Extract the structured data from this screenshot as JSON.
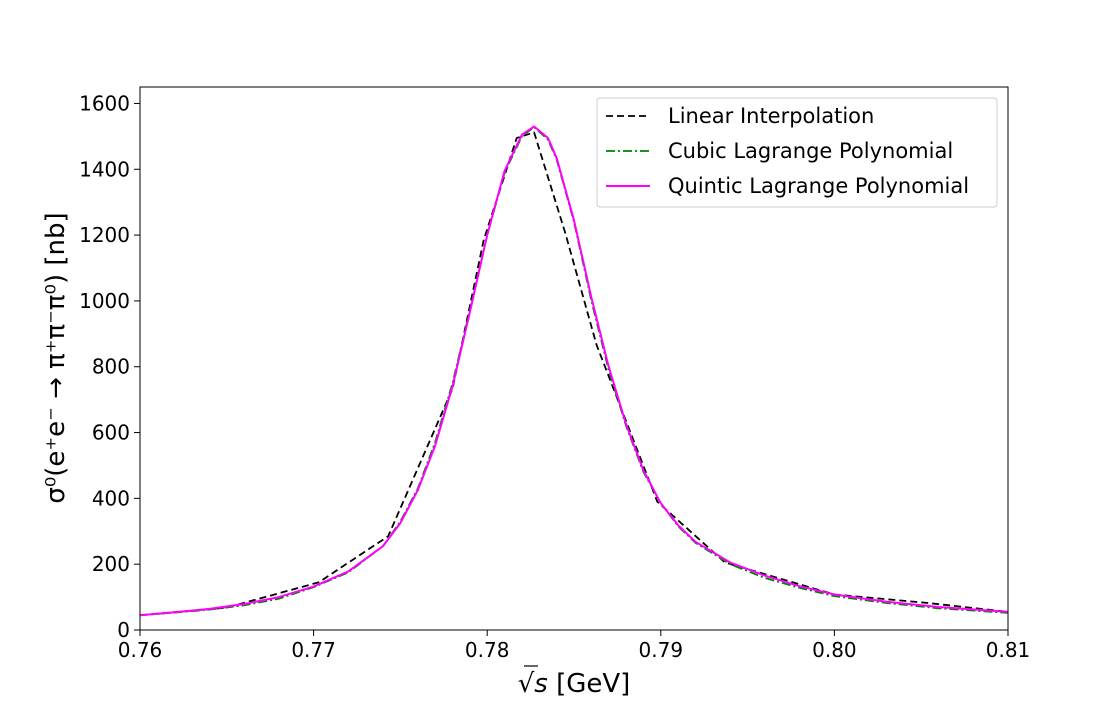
{
  "chart_data": {
    "type": "line",
    "title": "",
    "xlabel_radical": "√",
    "xlabel_var": "s",
    "xlabel_unit": " [GeV]",
    "ylabel": "σ⁰(e⁺e⁻ → π⁺π⁻π⁰) [nb]",
    "xlim": [
      0.76,
      0.81
    ],
    "ylim": [
      0,
      1650
    ],
    "x_ticks": [
      0.76,
      0.77,
      0.78,
      0.79,
      0.8,
      0.81
    ],
    "x_tick_labels": [
      "0.76",
      "0.77",
      "0.78",
      "0.79",
      "0.80",
      "0.81"
    ],
    "y_ticks": [
      0,
      200,
      400,
      600,
      800,
      1000,
      1200,
      1400,
      1600
    ],
    "y_tick_labels": [
      "0",
      "200",
      "400",
      "600",
      "800",
      "1000",
      "1200",
      "1400",
      "1600"
    ],
    "grid": false,
    "legend_position": "top-right",
    "series": [
      {
        "name": "Linear Interpolation",
        "color": "#000000",
        "style": "dashed",
        "x": [
          0.76,
          0.765,
          0.7703,
          0.7743,
          0.778,
          0.7798,
          0.7817,
          0.7827,
          0.7845,
          0.7863,
          0.7898,
          0.7937,
          0.8,
          0.8054,
          0.81
        ],
        "y": [
          45,
          68,
          145,
          285,
          733,
          1185,
          1495,
          1512,
          1206,
          866,
          390,
          205,
          108,
          82,
          55
        ]
      },
      {
        "name": "Cubic Lagrange Polynomial",
        "color": "#008000",
        "style": "dashdot",
        "x": [
          0.76,
          0.762,
          0.764,
          0.766,
          0.768,
          0.77,
          0.772,
          0.774,
          0.775,
          0.776,
          0.777,
          0.778,
          0.779,
          0.78,
          0.781,
          0.782,
          0.7827,
          0.7835,
          0.784,
          0.785,
          0.786,
          0.787,
          0.788,
          0.789,
          0.79,
          0.791,
          0.792,
          0.794,
          0.796,
          0.798,
          0.8,
          0.803,
          0.806,
          0.81
        ],
        "y": [
          45,
          53,
          62,
          75,
          95,
          130,
          175,
          255,
          330,
          430,
          570,
          750,
          970,
          1200,
          1390,
          1500,
          1528,
          1490,
          1430,
          1240,
          1000,
          790,
          620,
          480,
          385,
          315,
          265,
          200,
          158,
          128,
          103,
          82,
          66,
          52
        ]
      },
      {
        "name": "Quintic Lagrange Polynomial",
        "color": "#ff00ff",
        "style": "solid",
        "x": [
          0.76,
          0.762,
          0.764,
          0.766,
          0.768,
          0.77,
          0.772,
          0.774,
          0.775,
          0.776,
          0.777,
          0.778,
          0.779,
          0.78,
          0.781,
          0.782,
          0.7827,
          0.7835,
          0.784,
          0.785,
          0.786,
          0.787,
          0.788,
          0.789,
          0.79,
          0.791,
          0.792,
          0.794,
          0.796,
          0.798,
          0.8,
          0.803,
          0.806,
          0.81
        ],
        "y": [
          45,
          54,
          64,
          79,
          100,
          132,
          178,
          255,
          325,
          425,
          560,
          740,
          965,
          1200,
          1395,
          1505,
          1530,
          1495,
          1435,
          1245,
          1010,
          800,
          625,
          485,
          385,
          318,
          268,
          205,
          165,
          133,
          108,
          86,
          70,
          55
        ]
      }
    ]
  }
}
